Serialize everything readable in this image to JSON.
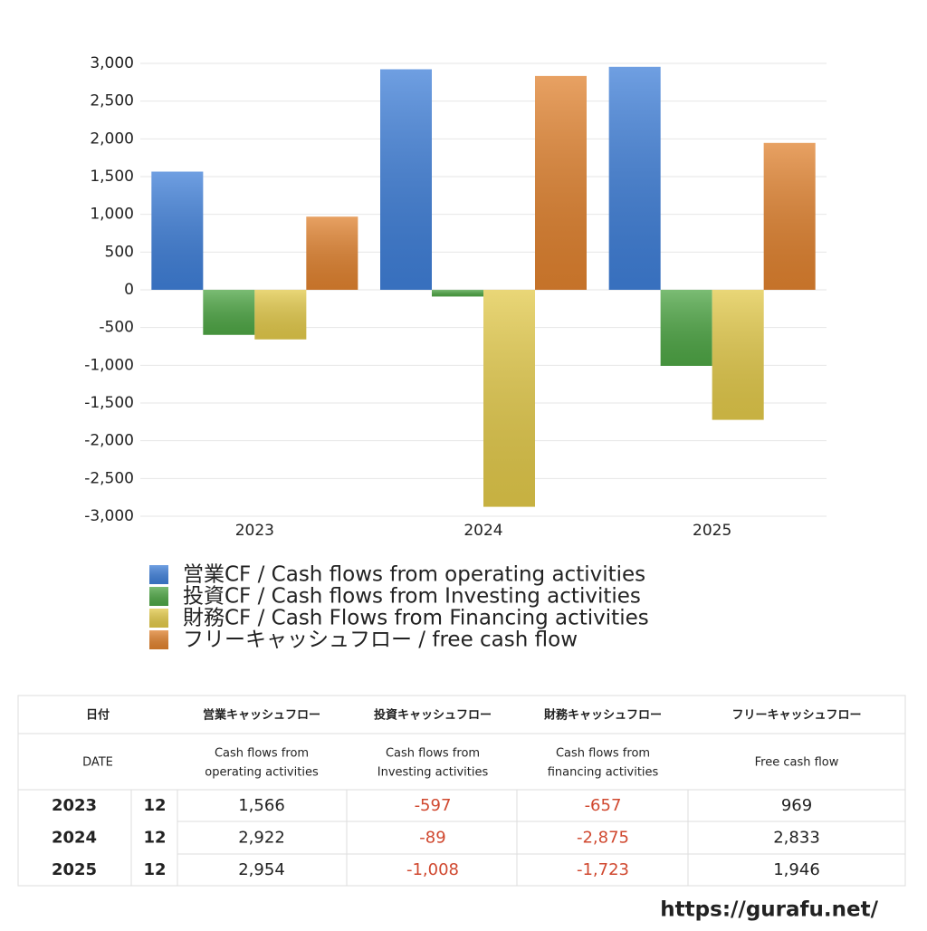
{
  "chart_data": {
    "type": "bar",
    "categories": [
      "2023",
      "2024",
      "2025"
    ],
    "series": [
      {
        "name": "営業CF / Cash flows from operating activities",
        "color": "#3f7fd8",
        "values": [
          1566,
          2922,
          2954
        ]
      },
      {
        "name": "投資CF / Cash flows from Investing activities",
        "color": "#4ea645",
        "values": [
          -597,
          -89,
          -1008
        ]
      },
      {
        "name": "財務CF / Cash Flows from Financing activities",
        "color": "#e2c94a",
        "values": [
          -657,
          -2875,
          -1723
        ]
      },
      {
        "name": "フリーキャッシュフロー / free cash flow",
        "color": "#e0822f",
        "values": [
          969,
          2833,
          1946
        ]
      }
    ],
    "ylim": [
      -3000,
      3000
    ],
    "yticks": [
      {
        "value": 3000,
        "label": "3,000"
      },
      {
        "value": 2500,
        "label": "2,500"
      },
      {
        "value": 2000,
        "label": "2,000"
      },
      {
        "value": 1500,
        "label": "1,500"
      },
      {
        "value": 1000,
        "label": "1,000"
      },
      500,
      0,
      -500,
      {
        "value": -1000,
        "label": "-1,000"
      },
      {
        "value": -1500,
        "label": "-1,500"
      },
      {
        "value": -2000,
        "label": "-2,000"
      },
      {
        "value": -2500,
        "label": "-2,500"
      },
      {
        "value": -3000,
        "label": "-3,000"
      }
    ],
    "grid": true
  },
  "table": {
    "header": [
      "日付",
      "営業キャッシュフロー",
      "投資キャッシュフロー",
      "財務キャッシュフロー",
      "フリーキャッシュフロー"
    ],
    "subheader": [
      "DATE",
      [
        "Cash flows from",
        "operating activities"
      ],
      [
        "Cash flows from",
        "Investing activities"
      ],
      [
        "Cash flows from",
        "financing activities"
      ],
      "Free cash flow"
    ],
    "rows": [
      [
        "2023",
        "12",
        "1,566",
        "-597",
        "-657",
        "969"
      ],
      [
        "2024",
        "12",
        "2,922",
        "-89",
        "-2,875",
        "2,833"
      ],
      [
        "2025",
        "12",
        "2,954",
        "-1,008",
        "-1,723",
        "1,946"
      ]
    ]
  },
  "footer": "https://gurafu.net/"
}
